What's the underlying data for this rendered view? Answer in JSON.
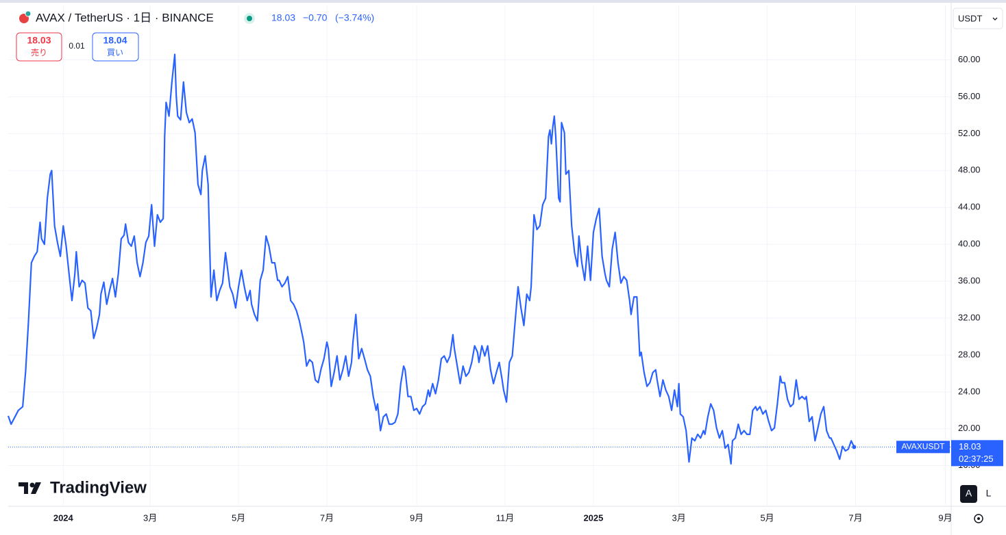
{
  "chart_data": {
    "type": "line",
    "title": "AVAX / TetherUS · 1日 · BINANCE",
    "x": [
      -38,
      -36,
      -34,
      -31,
      -28,
      -26,
      -24,
      -22,
      -20,
      -18,
      -16,
      -15,
      -13,
      -11,
      -9,
      -8,
      -6,
      -4,
      -2,
      0,
      2,
      4,
      6,
      8,
      9,
      11,
      13,
      15,
      17,
      19,
      21,
      23,
      25,
      26,
      28,
      30,
      32,
      34,
      36,
      38,
      40,
      42,
      43,
      45,
      47,
      49,
      51,
      53,
      55,
      57,
      59,
      61,
      62,
      63,
      65,
      67,
      69,
      70,
      71,
      73,
      75,
      77,
      78,
      79,
      81,
      83,
      85,
      87,
      89,
      91,
      93,
      95,
      96,
      98,
      100,
      102,
      104,
      106,
      108,
      110,
      112,
      113,
      115,
      117,
      119,
      121,
      123,
      125,
      127,
      129,
      130,
      132,
      134,
      136,
      138,
      140,
      142,
      144,
      146,
      148,
      149,
      151,
      153,
      155,
      157,
      159,
      161,
      163,
      165,
      166,
      168,
      170,
      172,
      174,
      176,
      178,
      180,
      182,
      183,
      185,
      187,
      189,
      191,
      193,
      195,
      197,
      199,
      200,
      202,
      204,
      206,
      208,
      210,
      212,
      214,
      216,
      217,
      219,
      221,
      223,
      225,
      227,
      229,
      231,
      233,
      235,
      236,
      238,
      240,
      242,
      244,
      246,
      248,
      250,
      252,
      253,
      255,
      257,
      259,
      261,
      263,
      265,
      267,
      269,
      270,
      272,
      274,
      276,
      278,
      280,
      282,
      284,
      286,
      287,
      289,
      291,
      293,
      295,
      297,
      299,
      301,
      303,
      304,
      306,
      308,
      310,
      312,
      314,
      316,
      318,
      320,
      322,
      323,
      325,
      327,
      329,
      331,
      333,
      335,
      336,
      337,
      338,
      339,
      340,
      342,
      343,
      344,
      346,
      347,
      349,
      351,
      353,
      355,
      356,
      358,
      360,
      362,
      364,
      366,
      368,
      370,
      372,
      374,
      375,
      377,
      379,
      381,
      383,
      385,
      387,
      389,
      391,
      392,
      394,
      396,
      398,
      399,
      401,
      403,
      405,
      407,
      409,
      410,
      412,
      414,
      416,
      418,
      420,
      422,
      424,
      425,
      426,
      428,
      430,
      432,
      434,
      436,
      438,
      440,
      442,
      443,
      445,
      447,
      449,
      451,
      453,
      455,
      457,
      459,
      461,
      462,
      464,
      466,
      468,
      470,
      472,
      474,
      476,
      478,
      479,
      481,
      483,
      485,
      487,
      489,
      491,
      493,
      495,
      496,
      498,
      500,
      502,
      504,
      506,
      508,
      510,
      512,
      513,
      515,
      517,
      519,
      521,
      523,
      525,
      527,
      529,
      530,
      532,
      534,
      536,
      538,
      540,
      542,
      544,
      546
    ],
    "series": [
      {
        "name": "AVAXUSDT",
        "color": "#2962ff",
        "values": [
          21.4,
          20.5,
          21.1,
          22.0,
          22.4,
          26.2,
          31.7,
          38.0,
          38.7,
          39.2,
          42.4,
          40.6,
          40.0,
          45.0,
          47.6,
          48.0,
          42.0,
          40.2,
          38.7,
          42.0,
          39.8,
          36.8,
          33.9,
          36.8,
          39.2,
          35.4,
          36.1,
          35.8,
          33.1,
          32.8,
          29.8,
          30.9,
          32.4,
          34.6,
          35.9,
          33.5,
          35.0,
          36.3,
          34.3,
          36.8,
          40.6,
          41.0,
          42.2,
          40.2,
          39.8,
          40.9,
          38.0,
          36.5,
          38.0,
          40.2,
          40.9,
          44.3,
          42.0,
          39.8,
          43.2,
          42.4,
          42.8,
          51.7,
          55.4,
          53.9,
          57.6,
          60.6,
          56.1,
          53.9,
          53.5,
          57.6,
          54.3,
          53.2,
          53.6,
          52.1,
          46.5,
          45.4,
          48.0,
          49.6,
          46.5,
          34.3,
          37.2,
          33.9,
          35.0,
          35.8,
          39.1,
          37.9,
          35.4,
          34.6,
          33.1,
          35.4,
          37.2,
          35.4,
          33.9,
          35.0,
          33.5,
          32.4,
          31.7,
          36.1,
          37.2,
          40.9,
          39.8,
          38.0,
          38.0,
          36.1,
          36.1,
          35.4,
          35.8,
          36.5,
          33.9,
          33.5,
          32.8,
          31.7,
          30.2,
          29.4,
          26.8,
          27.5,
          27.2,
          25.3,
          25.0,
          26.5,
          27.6,
          29.4,
          28.7,
          24.6,
          26.1,
          27.9,
          25.3,
          26.4,
          27.9,
          25.7,
          27.2,
          29.4,
          32.4,
          27.6,
          28.7,
          27.6,
          26.4,
          25.7,
          23.5,
          22.0,
          22.7,
          19.8,
          21.3,
          21.6,
          20.5,
          20.5,
          20.7,
          21.6,
          24.9,
          26.8,
          26.4,
          23.5,
          23.5,
          22.0,
          22.2,
          21.6,
          22.4,
          22.7,
          24.2,
          23.5,
          24.9,
          23.8,
          25.3,
          27.6,
          27.9,
          27.2,
          27.9,
          30.2,
          28.7,
          26.8,
          24.9,
          26.8,
          25.7,
          26.1,
          27.2,
          29.0,
          28.3,
          27.2,
          29.0,
          27.9,
          29.0,
          26.4,
          24.9,
          26.1,
          27.2,
          25.3,
          24.2,
          22.9,
          27.2,
          27.9,
          31.7,
          35.4,
          33.1,
          31.2,
          34.6,
          33.9,
          35.4,
          43.2,
          41.6,
          42.0,
          44.3,
          45.0,
          51.7,
          52.4,
          50.9,
          52.8,
          53.9,
          51.7,
          45.0,
          44.6,
          53.2,
          52.1,
          47.6,
          48.0,
          42.0,
          39.1,
          37.6,
          40.9,
          38.0,
          36.1,
          39.8,
          36.1,
          41.3,
          42.8,
          43.9,
          38.7,
          36.8,
          36.1,
          35.4,
          39.5,
          41.3,
          38.0,
          35.8,
          36.5,
          36.1,
          33.9,
          32.4,
          34.3,
          34.3,
          27.9,
          28.3,
          26.1,
          24.6,
          25.0,
          26.1,
          26.4,
          25.3,
          23.5,
          25.3,
          24.2,
          23.5,
          22.0,
          24.2,
          22.4,
          24.9,
          21.6,
          21.3,
          19.8,
          16.4,
          19.0,
          18.7,
          19.4,
          19.0,
          19.8,
          19.4,
          21.3,
          22.7,
          22.0,
          20.1,
          19.0,
          19.8,
          17.9,
          18.3,
          16.2,
          18.7,
          19.0,
          20.5,
          19.4,
          19.8,
          19.4,
          19.4,
          22.0,
          22.4,
          22.0,
          22.4,
          21.6,
          22.0,
          20.8,
          19.8,
          20.1,
          22.7,
          25.7,
          25.0,
          25.0,
          23.2,
          22.4,
          22.7,
          25.3,
          23.2,
          23.5,
          23.2,
          23.5,
          20.8,
          21.3,
          18.7,
          20.1,
          21.6,
          22.4,
          19.8,
          19.0,
          19.0,
          18.3,
          17.6,
          16.7,
          18.1,
          17.6,
          17.8,
          18.7,
          18.03
        ]
      }
    ],
    "xlim": [
      -38,
      613
    ],
    "ylim": [
      11.6,
      65.9
    ],
    "xticks": [
      {
        "value": 0,
        "label": "2024"
      },
      {
        "value": 60,
        "label": "3月"
      },
      {
        "value": 121,
        "label": "5月"
      },
      {
        "value": 182,
        "label": "7月"
      },
      {
        "value": 244,
        "label": "9月"
      },
      {
        "value": 305,
        "label": "11月"
      },
      {
        "value": 366,
        "label": "2025"
      },
      {
        "value": 425,
        "label": "3月"
      },
      {
        "value": 486,
        "label": "5月"
      },
      {
        "value": 547,
        "label": "7月"
      },
      {
        "value": 609,
        "label": "9月"
      }
    ],
    "yticks": [
      {
        "value": 16,
        "label": "16.00"
      },
      {
        "value": 20,
        "label": "20.00"
      },
      {
        "value": 24,
        "label": "24.00"
      },
      {
        "value": 28,
        "label": "28.00"
      },
      {
        "value": 32,
        "label": "32.00"
      },
      {
        "value": 36,
        "label": "36.00"
      },
      {
        "value": 40,
        "label": "40.00"
      },
      {
        "value": 44,
        "label": "44.00"
      },
      {
        "value": 48,
        "label": "48.00"
      },
      {
        "value": 52,
        "label": "52.00"
      },
      {
        "value": 56,
        "label": "56.00"
      },
      {
        "value": 60,
        "label": "60.00"
      }
    ],
    "grid": true,
    "last_price": 18.03,
    "countdown": "02:37:25"
  },
  "quote": {
    "price": 18.03,
    "change": "−0.70",
    "change_pct": "(−3.74%)",
    "sell": {
      "price": 18.03,
      "label": "売り"
    },
    "spread": 0.01,
    "buy": {
      "price": 18.04,
      "label": "買い"
    }
  },
  "currency": "USDT",
  "brand": "TradingView",
  "scale_buttons": [
    "A",
    "L"
  ]
}
